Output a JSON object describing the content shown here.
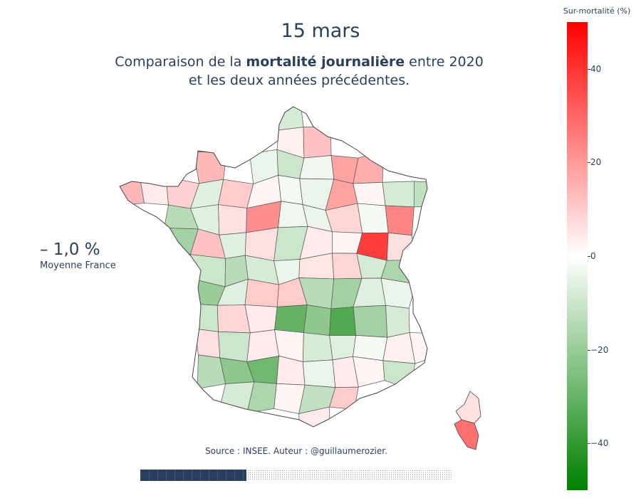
{
  "title": "15 mars",
  "subtitle": {
    "part1": "Comparaison de la ",
    "bold": "mortalité journalière",
    "part2": " entre 2020",
    "line2": "et les deux années précédentes."
  },
  "stat": {
    "value": "– 1,0 %",
    "label": "Moyenne France"
  },
  "source": "Source : INSEE. Auteur : @guillaumerozier.",
  "progress": {
    "fraction": 0.34
  },
  "colorbar": {
    "title": "Sur-mortalité (%)",
    "min": -50,
    "max": 50,
    "colors": {
      "high": "#ff0000",
      "mid": "#ffffff",
      "low": "#008000"
    },
    "ticks": [
      "40",
      "20",
      "0",
      "−20",
      "−40"
    ],
    "tick_values": [
      40,
      20,
      0,
      -20,
      -40
    ]
  },
  "map": {
    "region": "France métropolitaine et Corse",
    "values": [
      -8,
      3,
      12,
      14,
      -4,
      -10,
      -3,
      18,
      16,
      14,
      4,
      9,
      -6,
      10,
      2,
      -2,
      -4,
      18,
      2,
      -8,
      -12,
      -14,
      -6,
      6,
      22,
      -3,
      -4,
      8,
      -2,
      24,
      -18,
      12,
      -6,
      6,
      -10,
      4,
      2,
      38,
      6,
      -10,
      -14,
      -8,
      -4,
      5,
      8,
      -8,
      -16,
      -20,
      -6,
      10,
      10,
      -14,
      -18,
      -6,
      -4,
      -10,
      8,
      4,
      -30,
      -22,
      -34,
      -18,
      -8,
      6,
      -10,
      4,
      2,
      -8,
      -6,
      -2,
      3,
      2,
      -14,
      -22,
      -28,
      4,
      -4,
      4,
      2,
      -10,
      -8,
      -16,
      2,
      -12,
      10,
      4,
      -6,
      -4,
      -14,
      30,
      -12,
      2,
      -3,
      -10,
      -20,
      -26,
      6,
      -8,
      4
    ]
  }
}
